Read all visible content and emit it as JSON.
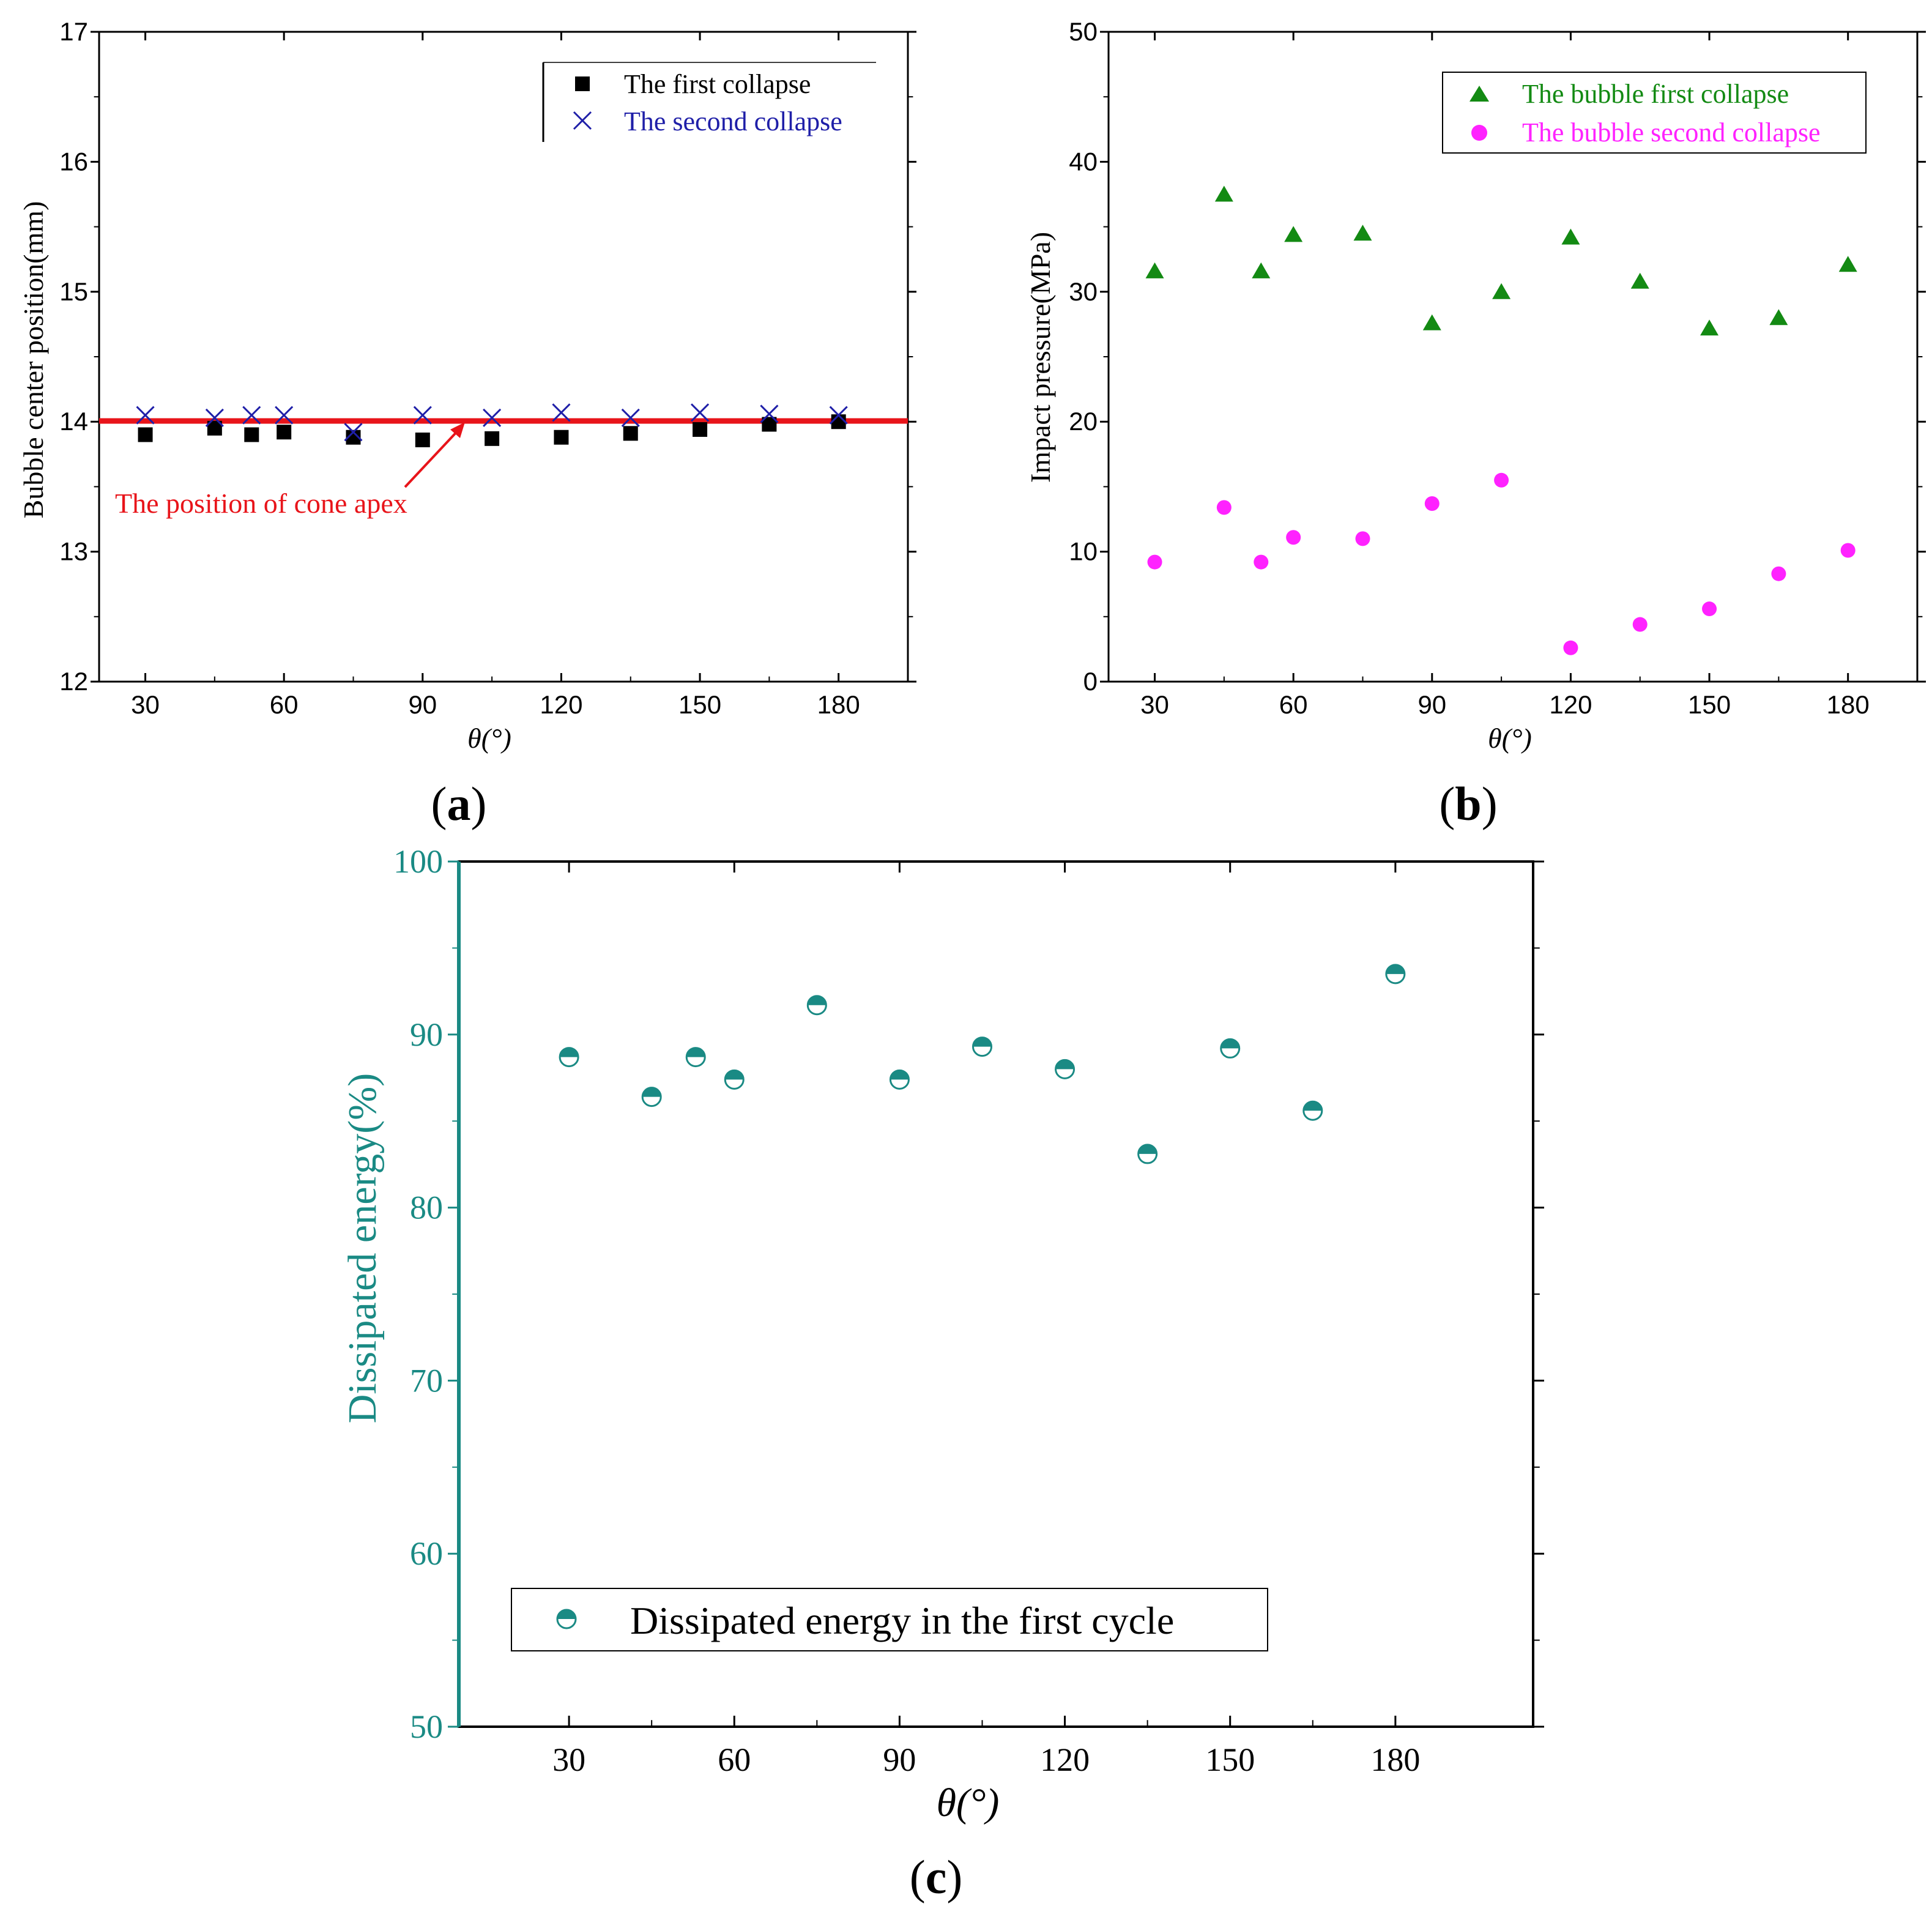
{
  "colors": {
    "black": "#000000",
    "blue": "#1f1fa8",
    "red": "#e8141a",
    "green": "#138a13",
    "magenta": "#ff22ff",
    "teal": "#1a8a84"
  },
  "panel_labels": {
    "a": {
      "open": "(",
      "letter": "a",
      "close": ")"
    },
    "b": {
      "open": "(",
      "letter": "b",
      "close": ")"
    },
    "c": {
      "open": "(",
      "letter": "c",
      "close": ")"
    }
  },
  "chart_data": [
    {
      "id": "a",
      "type": "scatter",
      "xlabel": "θ(°)",
      "ylabel": "Bubble center position(mm)",
      "xlim": [
        20,
        195
      ],
      "ylim": [
        12,
        17
      ],
      "xticks": [
        30,
        60,
        90,
        120,
        150,
        180
      ],
      "yticks": [
        12,
        13,
        14,
        15,
        16,
        17
      ],
      "legend_position": "top-right",
      "series": [
        {
          "name": "The first collapse",
          "marker": "square",
          "color": "#000000",
          "points": [
            [
              30,
              13.9
            ],
            [
              45,
              13.95
            ],
            [
              53,
              13.9
            ],
            [
              60,
              13.92
            ],
            [
              75,
              13.88
            ],
            [
              90,
              13.86
            ],
            [
              105,
              13.87
            ],
            [
              120,
              13.88
            ],
            [
              135,
              13.91
            ],
            [
              150,
              13.94
            ],
            [
              165,
              13.98
            ],
            [
              180,
              14.0
            ]
          ]
        },
        {
          "name": "The second collapse",
          "marker": "x",
          "color": "#1f1fa8",
          "points": [
            [
              30,
              14.05
            ],
            [
              45,
              14.03
            ],
            [
              53,
              14.05
            ],
            [
              60,
              14.05
            ],
            [
              75,
              13.92
            ],
            [
              90,
              14.05
            ],
            [
              105,
              14.03
            ],
            [
              120,
              14.07
            ],
            [
              135,
              14.03
            ],
            [
              150,
              14.07
            ],
            [
              165,
              14.06
            ],
            [
              180,
              14.05
            ]
          ]
        }
      ],
      "reference_line": {
        "y": 14.0,
        "color": "#e8141a"
      },
      "annotation": {
        "text": "The position of cone apex",
        "color": "#e8141a",
        "arrow_to": [
          102,
          14.0
        ]
      }
    },
    {
      "id": "b",
      "type": "scatter",
      "xlabel": "θ(°)",
      "ylabel": "Impact pressure(MPa)",
      "xlim": [
        20,
        195
      ],
      "ylim": [
        0,
        50
      ],
      "xticks": [
        30,
        60,
        90,
        120,
        150,
        180
      ],
      "yticks": [
        0,
        10,
        20,
        30,
        40,
        50
      ],
      "legend_position": "top-right",
      "series": [
        {
          "name": "The bubble first collapse",
          "marker": "triangle",
          "color": "#138a13",
          "points": [
            [
              30,
              31.6
            ],
            [
              45,
              37.5
            ],
            [
              53,
              31.6
            ],
            [
              60,
              34.4
            ],
            [
              75,
              34.5
            ],
            [
              90,
              27.6
            ],
            [
              105,
              30.0
            ],
            [
              120,
              34.2
            ],
            [
              135,
              30.8
            ],
            [
              150,
              27.2
            ],
            [
              165,
              28.0
            ],
            [
              180,
              32.1
            ]
          ]
        },
        {
          "name": "The bubble second collapse",
          "marker": "circle",
          "color": "#ff22ff",
          "points": [
            [
              30,
              9.2
            ],
            [
              45,
              13.4
            ],
            [
              53,
              9.2
            ],
            [
              60,
              11.1
            ],
            [
              75,
              11.0
            ],
            [
              90,
              13.7
            ],
            [
              105,
              15.5
            ],
            [
              120,
              2.6
            ],
            [
              135,
              4.4
            ],
            [
              150,
              5.6
            ],
            [
              165,
              8.3
            ],
            [
              180,
              10.1
            ]
          ]
        }
      ]
    },
    {
      "id": "c",
      "type": "scatter",
      "xlabel": "θ(°)",
      "ylabel": "Dissipated energy(%)",
      "xlim": [
        10,
        205
      ],
      "ylim": [
        50,
        100
      ],
      "xticks": [
        30,
        60,
        90,
        120,
        150,
        180
      ],
      "yticks": [
        50,
        60,
        70,
        80,
        90,
        100
      ],
      "legend_position": "bottom-left",
      "series": [
        {
          "name": "Dissipated energy in the first cycle",
          "marker": "half-filled-circle",
          "color": "#1a8a84",
          "points": [
            [
              30,
              88.7
            ],
            [
              45,
              86.4
            ],
            [
              53,
              88.7
            ],
            [
              60,
              87.4
            ],
            [
              75,
              91.7
            ],
            [
              90,
              87.4
            ],
            [
              105,
              89.3
            ],
            [
              120,
              88.0
            ],
            [
              135,
              83.1
            ],
            [
              150,
              89.2
            ],
            [
              165,
              85.6
            ],
            [
              180,
              93.5
            ]
          ]
        }
      ]
    }
  ]
}
